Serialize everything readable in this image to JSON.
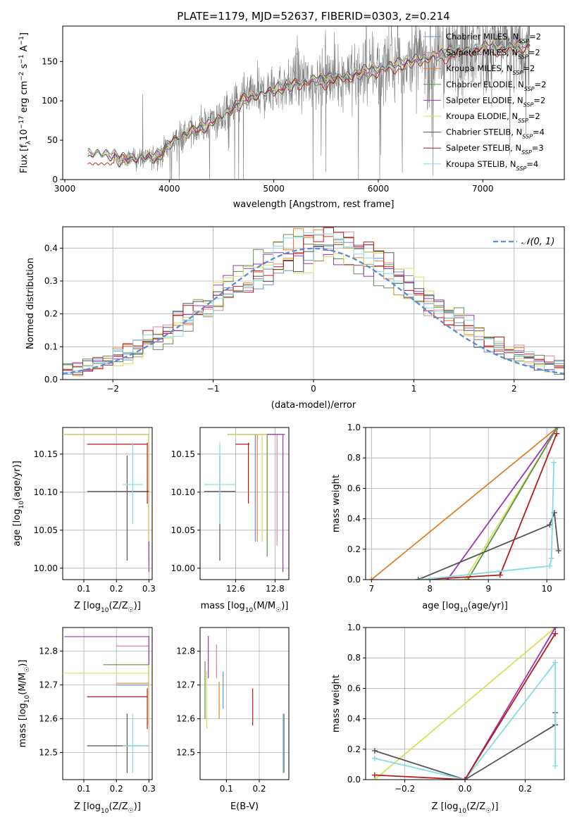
{
  "figure": {
    "title": "PLATE=1179, MJD=52637, FIBERID=0303, z=0.214"
  },
  "models": [
    {
      "name": "Chabrier MILES, N$_{SSP}$=2",
      "label": "Chabrier MILES, N",
      "sub": "SSP",
      "tail": "=2",
      "color": "#6a8fd8"
    },
    {
      "name": "Salpeter MILES, N$_{SSP}$=2",
      "label": "Salpeter MILES, N",
      "sub": "SSP",
      "tail": "=2",
      "color": "#e7858f"
    },
    {
      "name": "Kroupa MILES, N$_{SSP}$=2",
      "label": "Kroupa MILES, N",
      "sub": "SSP",
      "tail": "=2",
      "color": "#e0822a"
    },
    {
      "name": "Chabrier ELODIE, N$_{SSP}$=2",
      "label": "Chabrier ELODIE, N",
      "sub": "SSP",
      "tail": "=2",
      "color": "#5f8f4f"
    },
    {
      "name": "Salpeter ELODIE, N$_{SSP}$=2",
      "label": "Salpeter ELODIE, N",
      "sub": "SSP",
      "tail": "=2",
      "color": "#9a36b4"
    },
    {
      "name": "Kroupa ELODIE, N$_{SSP}$=2",
      "label": "Kroupa ELODIE, N",
      "sub": "SSP",
      "tail": "=2",
      "color": "#d8e05a"
    },
    {
      "name": "Chabrier STELIB, N$_{SSP}$=4",
      "label": "Chabrier STELIB, N",
      "sub": "SSP",
      "tail": "=4",
      "color": "#555555"
    },
    {
      "name": "Salpeter STELIB, N$_{SSP}$=3",
      "label": "Salpeter STELIB, N",
      "sub": "SSP",
      "tail": "=3",
      "color": "#b41c1c"
    },
    {
      "name": "Kroupa STELIB, N$_{SSP}$=4",
      "label": "Kroupa STELIB, N",
      "sub": "SSP",
      "tail": "=4",
      "color": "#82dce0"
    }
  ],
  "chart_data": [
    {
      "id": "spectrum",
      "type": "line",
      "xlabel": "wavelength [Angstrom, rest frame]",
      "ylabel_parts": [
        "Flux [f",
        "λ",
        "10",
        "−17",
        " erg cm",
        "−2",
        " s",
        "−1",
        " A",
        "−1",
        "]"
      ],
      "xlim": [
        2980,
        7780
      ],
      "ylim": [
        0,
        195
      ],
      "xticks": [
        3000,
        4000,
        5000,
        6000,
        7000
      ],
      "yticks": [
        0,
        50,
        100,
        150
      ],
      "grid": false,
      "legend": "top-right",
      "data_color": "#808080",
      "data_start": 3220,
      "data_end": 7450,
      "model_trend_x": [
        3220,
        3300,
        3480,
        3520,
        3700,
        3900,
        4000,
        4100,
        4300,
        4500,
        4700,
        4900,
        5100,
        5300,
        5500,
        5700,
        5900,
        6100,
        6300,
        6500,
        6700,
        6900,
        7100,
        7300,
        7450
      ],
      "model_trend_y": [
        32,
        34,
        30,
        25,
        27,
        30,
        45,
        55,
        65,
        80,
        100,
        110,
        118,
        125,
        128,
        132,
        138,
        145,
        150,
        156,
        163,
        166,
        168,
        170,
        170
      ],
      "stelib_blue_level": 20
    },
    {
      "id": "residuals",
      "type": "step",
      "xlabel": "(data-model)/error",
      "ylabel": "Normed distribution",
      "xlim": [
        -2.5,
        2.5
      ],
      "ylim": [
        0,
        0.465
      ],
      "xticks": [
        -2,
        -1,
        0,
        1,
        2
      ],
      "yticks": [
        0.0,
        0.1,
        0.2,
        0.3,
        0.4
      ],
      "grid": true,
      "legend": "top-right",
      "legend_label": "𝒩(0, 1)",
      "gauss_color": "#5b8ad6",
      "bin_width": 0.1
    },
    {
      "id": "age-vs-z",
      "type": "errorbar",
      "xlabel": "Z [log10(Z/Z☉)]",
      "xlabel_parts": [
        "Z [log",
        "10",
        "(Z/Z",
        "☉",
        ")]"
      ],
      "ylabel_parts": [
        "age  [log",
        "10",
        "(age/yr)]"
      ],
      "xlim": [
        0.035,
        0.31
      ],
      "ylim": [
        9.985,
        10.185
      ],
      "xticks": [
        0.1,
        0.2,
        0.3
      ],
      "yticks": [
        10.0,
        10.05,
        10.1,
        10.15
      ],
      "grid": true,
      "points": [
        {
          "m": 0,
          "x": 0.3,
          "xlo": 0.0,
          "xhi": 0.0,
          "y": 10.176,
          "ylo": 0.0,
          "yhi": 0.0,
          "xlo_l": 0.04,
          "xhi_l": 0.3,
          "ylo_l": 10.03,
          "yhi_l": 10.176
        },
        {
          "m": 1,
          "x": 0.3,
          "xlo_l": 0.04,
          "xhi_l": 0.3,
          "y": 10.176,
          "ylo_l": 10.03,
          "yhi_l": 10.176
        },
        {
          "m": 2,
          "x": 0.3,
          "xlo_l": 0.04,
          "xhi_l": 0.3,
          "y": 10.176,
          "ylo_l": 10.035,
          "yhi_l": 10.176
        },
        {
          "m": 3,
          "x": 0.3,
          "xlo_l": 0.04,
          "xhi_l": 0.3,
          "y": 10.176,
          "ylo_l": 10.01,
          "yhi_l": 10.176
        },
        {
          "m": 4,
          "x": 0.3,
          "xlo_l": 0.04,
          "xhi_l": 0.3,
          "y": 10.176,
          "ylo_l": 9.995,
          "yhi_l": 10.176
        },
        {
          "m": 5,
          "x": 0.3,
          "xlo_l": 0.04,
          "xhi_l": 0.3,
          "y": 10.176,
          "ylo_l": 10.035,
          "yhi_l": 10.176
        },
        {
          "m": 6,
          "x": 0.233,
          "xlo_l": 0.11,
          "xhi_l": 0.3,
          "y": 10.101,
          "ylo_l": 10.01,
          "yhi_l": 10.148
        },
        {
          "m": 7,
          "x": 0.295,
          "xlo_l": 0.11,
          "xhi_l": 0.295,
          "y": 10.163,
          "ylo_l": 10.085,
          "yhi_l": 10.165
        },
        {
          "m": 8,
          "x": 0.25,
          "xlo_l": 0.22,
          "xhi_l": 0.28,
          "y": 10.11,
          "ylo_l": 10.058,
          "yhi_l": 10.165
        }
      ]
    },
    {
      "id": "age-vs-mass",
      "type": "errorbar",
      "xlabel_parts": [
        "mass [log",
        "10",
        "(M/M",
        "☉",
        ")]"
      ],
      "xlim": [
        12.42,
        12.87
      ],
      "ylim": [
        9.985,
        10.185
      ],
      "xticks": [
        12.6,
        12.8
      ],
      "yticks": [
        10.0,
        10.05,
        10.1,
        10.15
      ],
      "grid": true,
      "points": [
        {
          "m": 0,
          "x": 12.7,
          "xlo_l": 12.56,
          "xhi_l": 12.74,
          "y": 10.176,
          "ylo_l": 10.035,
          "yhi_l": 10.176
        },
        {
          "m": 1,
          "x": 12.81,
          "xlo_l": 12.56,
          "xhi_l": 12.84,
          "y": 10.176,
          "ylo_l": 10.03,
          "yhi_l": 10.176
        },
        {
          "m": 2,
          "x": 12.71,
          "xlo_l": 12.56,
          "xhi_l": 12.74,
          "y": 10.176,
          "ylo_l": 10.035,
          "yhi_l": 10.176
        },
        {
          "m": 3,
          "x": 12.76,
          "xlo_l": 12.56,
          "xhi_l": 12.8,
          "y": 10.176,
          "ylo_l": 10.015,
          "yhi_l": 10.176
        },
        {
          "m": 4,
          "x": 12.84,
          "xlo_l": 12.56,
          "xhi_l": 12.85,
          "y": 10.176,
          "ylo_l": 9.995,
          "yhi_l": 10.176
        },
        {
          "m": 5,
          "x": 12.735,
          "xlo_l": 12.56,
          "xhi_l": 12.76,
          "y": 10.176,
          "ylo_l": 10.035,
          "yhi_l": 10.176
        },
        {
          "m": 6,
          "x": 12.52,
          "xlo_l": 12.44,
          "xhi_l": 12.6,
          "y": 10.101,
          "ylo_l": 10.01,
          "yhi_l": 10.148
        },
        {
          "m": 7,
          "x": 12.665,
          "xlo_l": 12.6,
          "xhi_l": 12.67,
          "y": 10.163,
          "ylo_l": 10.085,
          "yhi_l": 10.165
        },
        {
          "m": 8,
          "x": 12.52,
          "xlo_l": 12.44,
          "xhi_l": 12.6,
          "y": 10.11,
          "ylo_l": 10.058,
          "yhi_l": 10.165
        }
      ]
    },
    {
      "id": "mass-weight-vs-age",
      "type": "line",
      "ylabel": "mass weight",
      "xlabel_parts": [
        "age  [log",
        "10",
        "(age/yr)]"
      ],
      "xlim": [
        6.9,
        10.3
      ],
      "ylim": [
        0,
        1.0
      ],
      "xticks": [
        7,
        8,
        9,
        10
      ],
      "yticks": [
        0.0,
        0.2,
        0.4,
        0.6,
        0.8,
        1.0
      ],
      "grid": true,
      "series": [
        {
          "m": 2,
          "x": [
            7.0,
            10.18
          ],
          "y": [
            0.0,
            1.0
          ]
        },
        {
          "m": 4,
          "x": [
            8.3,
            10.18
          ],
          "y": [
            0.0,
            1.0
          ]
        },
        {
          "m": 5,
          "x": [
            8.6,
            10.18
          ],
          "y": [
            0.0,
            1.0
          ]
        },
        {
          "m": 3,
          "x": [
            8.65,
            10.18
          ],
          "y": [
            0.0,
            1.0
          ]
        },
        {
          "m": 6,
          "x": [
            7.8,
            10.05,
            10.13,
            10.2
          ],
          "y": [
            0.0,
            0.36,
            0.44,
            0.19
          ]
        },
        {
          "m": 7,
          "x": [
            7.85,
            9.2,
            10.17
          ],
          "y": [
            0.0,
            0.03,
            0.96
          ]
        },
        {
          "m": 8,
          "x": [
            7.85,
            10.05,
            10.08,
            10.12
          ],
          "y": [
            0.0,
            0.09,
            0.14,
            0.77
          ]
        }
      ]
    },
    {
      "id": "mass-vs-z",
      "type": "errorbar",
      "xlabel_parts": [
        "Z [log",
        "10",
        "(Z/Z",
        "☉",
        ")]"
      ],
      "ylabel_parts": [
        "mass [log",
        "10",
        "(M/M",
        "☉",
        ")]"
      ],
      "xlim": [
        0.035,
        0.31
      ],
      "ylim": [
        12.42,
        12.87
      ],
      "xticks": [
        0.1,
        0.2,
        0.3
      ],
      "yticks": [
        12.5,
        12.6,
        12.7,
        12.8
      ],
      "grid": true,
      "points": [
        {
          "m": 0,
          "x": 0.3,
          "xlo_l": 0.2,
          "xhi_l": 0.3,
          "y": 12.7,
          "ylo_l": 12.58,
          "yhi_l": 12.74
        },
        {
          "m": 1,
          "x": 0.3,
          "xlo_l": 0.2,
          "xhi_l": 0.3,
          "y": 12.815,
          "ylo_l": 12.58,
          "yhi_l": 12.84
        },
        {
          "m": 2,
          "x": 0.3,
          "xlo_l": 0.2,
          "xhi_l": 0.3,
          "y": 12.705,
          "ylo_l": 12.58,
          "yhi_l": 12.74
        },
        {
          "m": 3,
          "x": 0.3,
          "xlo_l": 0.16,
          "xhi_l": 0.3,
          "y": 12.76,
          "ylo_l": 12.58,
          "yhi_l": 12.8
        },
        {
          "m": 4,
          "x": 0.3,
          "xlo_l": 0.04,
          "xhi_l": 0.3,
          "y": 12.843,
          "ylo_l": 12.58,
          "yhi_l": 12.845
        },
        {
          "m": 5,
          "x": 0.3,
          "xlo_l": 0.04,
          "xhi_l": 0.3,
          "y": 12.735,
          "ylo_l": 12.58,
          "yhi_l": 12.76
        },
        {
          "m": 6,
          "x": 0.233,
          "xlo_l": 0.11,
          "xhi_l": 0.3,
          "y": 12.52,
          "ylo_l": 12.44,
          "yhi_l": 12.615
        },
        {
          "m": 7,
          "x": 0.295,
          "xlo_l": 0.11,
          "xhi_l": 0.295,
          "y": 12.665,
          "ylo_l": 12.57,
          "yhi_l": 12.69
        },
        {
          "m": 8,
          "x": 0.25,
          "xlo_l": 0.22,
          "xhi_l": 0.3,
          "y": 12.52,
          "ylo_l": 12.44,
          "yhi_l": 12.615
        }
      ]
    },
    {
      "id": "mass-vs-ebv",
      "type": "errorbar",
      "xlabel": "E(B-V)",
      "xlim": [
        0.02,
        0.29
      ],
      "ylim": [
        12.42,
        12.87
      ],
      "xticks": [
        0.1,
        0.2
      ],
      "yticks": [
        12.5,
        12.6,
        12.7,
        12.8
      ],
      "grid": true,
      "points": [
        {
          "m": 0,
          "x": 0.09,
          "xlo_l": 0.09,
          "xhi_l": 0.09,
          "y": 12.7,
          "ylo_l": 12.63,
          "yhi_l": 12.74
        },
        {
          "m": 1,
          "x": 0.07,
          "xlo_l": 0.07,
          "xhi_l": 0.07,
          "y": 12.8,
          "ylo_l": 12.72,
          "yhi_l": 12.82
        },
        {
          "m": 2,
          "x": 0.078,
          "xlo_l": 0.078,
          "xhi_l": 0.078,
          "y": 12.68,
          "ylo_l": 12.6,
          "yhi_l": 12.71
        },
        {
          "m": 3,
          "x": 0.035,
          "xlo_l": 0.035,
          "xhi_l": 0.035,
          "y": 12.68,
          "ylo_l": 12.6,
          "yhi_l": 12.77
        },
        {
          "m": 4,
          "x": 0.045,
          "xlo_l": 0.045,
          "xhi_l": 0.045,
          "y": 12.8,
          "ylo_l": 12.72,
          "yhi_l": 12.845
        },
        {
          "m": 5,
          "x": 0.04,
          "xlo_l": 0.04,
          "xhi_l": 0.04,
          "y": 12.68,
          "ylo_l": 12.57,
          "yhi_l": 12.74
        },
        {
          "m": 6,
          "x": 0.275,
          "xlo_l": 0.275,
          "xhi_l": 0.275,
          "y": 12.55,
          "ylo_l": 12.44,
          "yhi_l": 12.615
        },
        {
          "m": 7,
          "x": 0.18,
          "xlo_l": 0.18,
          "xhi_l": 0.18,
          "y": 12.63,
          "ylo_l": 12.58,
          "yhi_l": 12.69
        },
        {
          "m": 8,
          "x": 0.272,
          "xlo_l": 0.272,
          "xhi_l": 0.272,
          "y": 12.55,
          "ylo_l": 12.44,
          "yhi_l": 12.615
        }
      ]
    },
    {
      "id": "mass-weight-vs-z",
      "type": "line",
      "ylabel": "mass weight",
      "xlabel_parts": [
        "Z [log",
        "10",
        "(Z/Z",
        "☉",
        ")]"
      ],
      "xlim": [
        -0.33,
        0.33
      ],
      "ylim": [
        0,
        1.0
      ],
      "xticks": [
        -0.2,
        0.0,
        0.2
      ],
      "yticks": [
        0.0,
        0.2,
        0.4,
        0.6,
        0.8,
        1.0
      ],
      "grid": true,
      "series": [
        {
          "m": 5,
          "x": [
            -0.3,
            0.3
          ],
          "y": [
            0.0,
            1.0
          ]
        },
        {
          "m": 4,
          "x": [
            0.0,
            0.3
          ],
          "y": [
            0.0,
            1.0
          ]
        },
        {
          "m": 6,
          "x": [
            -0.3,
            0.0,
            0.3,
            0.3
          ],
          "y": [
            0.19,
            0.0,
            0.36,
            0.44
          ]
        },
        {
          "m": 8,
          "x": [
            -0.3,
            0.0,
            0.3,
            0.3
          ],
          "y": [
            0.14,
            0.0,
            0.77,
            0.09
          ]
        },
        {
          "m": 7,
          "x": [
            -0.3,
            0.0,
            0.3
          ],
          "y": [
            0.03,
            0.0,
            0.96
          ]
        }
      ]
    }
  ]
}
